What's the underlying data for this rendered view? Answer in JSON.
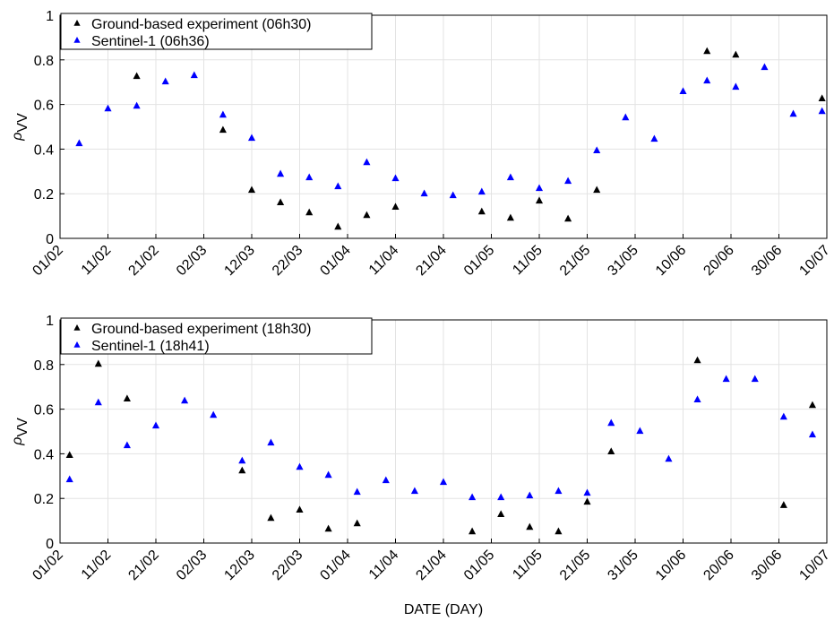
{
  "chart_data": [
    {
      "type": "scatter",
      "ylabel": "ρ",
      "ylabel_sub": "VV",
      "xlim": [
        "01/02",
        "10/07"
      ],
      "xticks": [
        "01/02",
        "11/02",
        "21/02",
        "02/03",
        "12/03",
        "22/03",
        "01/04",
        "11/04",
        "21/04",
        "01/05",
        "11/05",
        "21/05",
        "31/05",
        "10/06",
        "20/06",
        "30/06",
        "10/07"
      ],
      "ylim": [
        0,
        1
      ],
      "yticks": [
        0,
        0.2,
        0.4,
        0.6,
        0.8,
        1
      ],
      "grid": true,
      "legend": "upper-left",
      "marker": "triangle",
      "series": [
        {
          "name": "Ground-based experiment (06h30)",
          "color": "#000000",
          "x": [
            "17/02",
            "06/03",
            "12/03",
            "18/03",
            "24/03",
            "30/03",
            "05/04",
            "11/04",
            "29/04",
            "05/05",
            "11/05",
            "17/05",
            "23/05",
            "15/06",
            "21/06",
            "09/07"
          ],
          "values": [
            0.727,
            0.486,
            0.217,
            0.161,
            0.116,
            0.052,
            0.104,
            0.141,
            0.12,
            0.092,
            0.169,
            0.088,
            0.217,
            0.839,
            0.823,
            0.627
          ]
        },
        {
          "name": "Sentinel-1 (06h36)",
          "color": "#0000ff",
          "x": [
            "05/02",
            "11/02",
            "17/02",
            "23/02",
            "29/02",
            "06/03",
            "12/03",
            "18/03",
            "24/03",
            "30/03",
            "05/04",
            "11/04",
            "17/04",
            "23/04",
            "29/04",
            "05/05",
            "11/05",
            "17/05",
            "23/05",
            "29/05",
            "04/06",
            "10/06",
            "15/06",
            "21/06",
            "27/06",
            "03/07",
            "09/07"
          ],
          "values": [
            0.426,
            0.582,
            0.594,
            0.703,
            0.731,
            0.554,
            0.45,
            0.289,
            0.273,
            0.233,
            0.341,
            0.269,
            0.201,
            0.193,
            0.209,
            0.273,
            0.225,
            0.257,
            0.394,
            0.542,
            0.446,
            0.659,
            0.707,
            0.679,
            0.767,
            0.558,
            0.57
          ]
        }
      ]
    },
    {
      "type": "scatter",
      "ylabel": "ρ",
      "ylabel_sub": "VV",
      "xlabel": "DATE (DAY)",
      "xlim": [
        "01/02",
        "10/07"
      ],
      "xticks": [
        "01/02",
        "11/02",
        "21/02",
        "02/03",
        "12/03",
        "22/03",
        "01/04",
        "11/04",
        "21/04",
        "01/05",
        "11/05",
        "21/05",
        "31/05",
        "10/06",
        "20/06",
        "30/06",
        "10/07"
      ],
      "ylim": [
        0,
        1
      ],
      "yticks": [
        0,
        0.2,
        0.4,
        0.6,
        0.8,
        1
      ],
      "grid": true,
      "legend": "upper-left",
      "marker": "triangle",
      "series": [
        {
          "name": "Ground-based experiment (18h30)",
          "color": "#000000",
          "x": [
            "03/02",
            "09/02",
            "15/02",
            "10/03",
            "16/03",
            "22/03",
            "28/03",
            "03/04",
            "27/04",
            "03/05",
            "09/05",
            "15/05",
            "21/05",
            "26/05",
            "13/06",
            "01/07",
            "07/07"
          ],
          "values": [
            0.394,
            0.803,
            0.647,
            0.325,
            0.112,
            0.149,
            0.064,
            0.088,
            0.052,
            0.129,
            0.072,
            0.052,
            0.185,
            0.41,
            0.819,
            0.17,
            0.618
          ]
        },
        {
          "name": "Sentinel-1 (18h41)",
          "color": "#0000ff",
          "x": [
            "03/02",
            "09/02",
            "15/02",
            "21/02",
            "27/02",
            "04/03",
            "10/03",
            "16/03",
            "22/03",
            "28/03",
            "03/04",
            "09/04",
            "15/04",
            "21/04",
            "27/04",
            "03/05",
            "09/05",
            "15/05",
            "21/05",
            "26/05",
            "01/06",
            "07/06",
            "13/06",
            "19/06",
            "25/06",
            "01/07",
            "07/07"
          ],
          "values": [
            0.285,
            0.63,
            0.438,
            0.526,
            0.638,
            0.574,
            0.369,
            0.45,
            0.341,
            0.305,
            0.229,
            0.281,
            0.233,
            0.273,
            0.205,
            0.205,
            0.213,
            0.233,
            0.225,
            0.538,
            0.502,
            0.377,
            0.643,
            0.735,
            0.735,
            0.566,
            0.486
          ]
        }
      ]
    }
  ]
}
